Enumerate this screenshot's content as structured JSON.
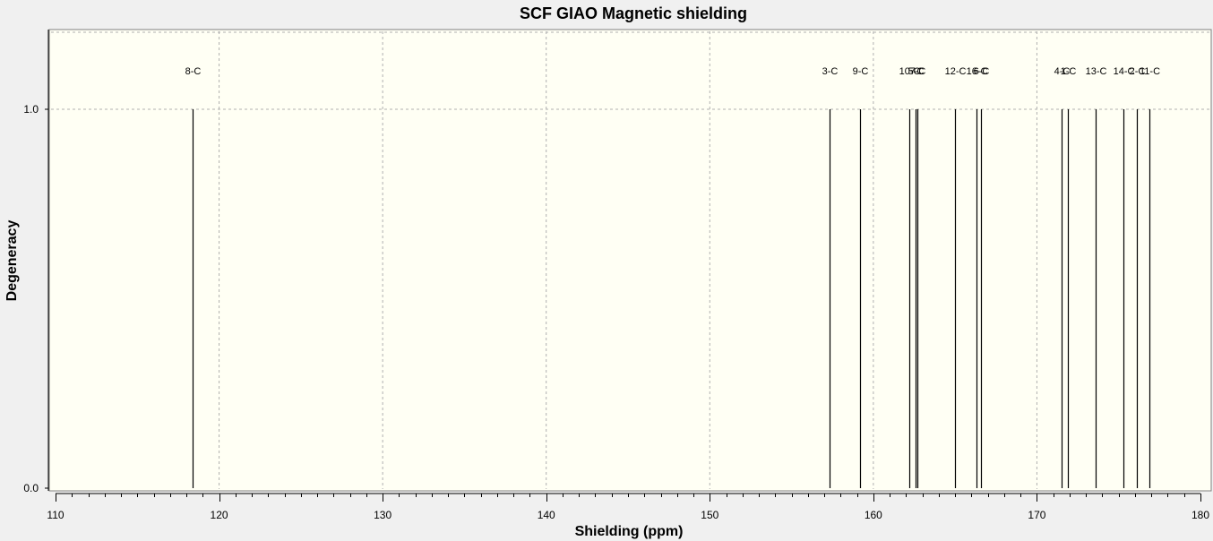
{
  "chart_data": {
    "type": "bar",
    "title": "SCF GIAO Magnetic shielding",
    "xlabel": "Shielding (ppm)",
    "ylabel": "Degeneracy",
    "xlim": [
      110,
      180
    ],
    "ylim": [
      0,
      1.2
    ],
    "x_ticks": [
      "110",
      "120",
      "130",
      "140",
      "150",
      "160",
      "170",
      "180"
    ],
    "y_ticks": [
      "0.0",
      "1.0"
    ],
    "grid": true,
    "peaks": [
      {
        "label": "8-C",
        "x": 118.4,
        "y": 1.0
      },
      {
        "label": "3-C",
        "x": 157.3,
        "y": 1.0
      },
      {
        "label": "9-C",
        "x": 159.2,
        "y": 1.0
      },
      {
        "label": "10-C",
        "x": 162.2,
        "y": 1.0
      },
      {
        "label": "5-C",
        "x": 162.6,
        "y": 1.0
      },
      {
        "label": "7-C",
        "x": 162.7,
        "y": 1.0
      },
      {
        "label": "12-C",
        "x": 165.0,
        "y": 1.0
      },
      {
        "label": "16-C",
        "x": 166.3,
        "y": 1.0
      },
      {
        "label": "6-C",
        "x": 166.6,
        "y": 1.0
      },
      {
        "label": "4-C",
        "x": 171.5,
        "y": 1.0
      },
      {
        "label": "1-C",
        "x": 171.9,
        "y": 1.0
      },
      {
        "label": "13-C",
        "x": 173.6,
        "y": 1.0
      },
      {
        "label": "14-C",
        "x": 175.3,
        "y": 1.0
      },
      {
        "label": "2-C",
        "x": 176.1,
        "y": 1.0
      },
      {
        "label": "11-C",
        "x": 176.9,
        "y": 1.0
      }
    ],
    "colors": {
      "plot_bg": "#fffff4",
      "outer_bg": "#f0f0f0",
      "grid": "#b0b0b0",
      "line": "#000000"
    }
  }
}
